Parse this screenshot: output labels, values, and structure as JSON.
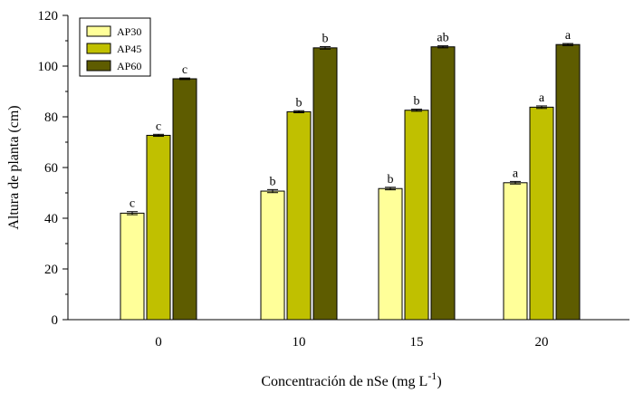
{
  "chart_data": {
    "type": "bar",
    "categories": [
      "0",
      "10",
      "15",
      "20"
    ],
    "series": [
      {
        "name": "AP30",
        "color": "#FFFF99",
        "values": [
          42,
          50.7,
          51.7,
          54
        ],
        "errors": [
          0.6,
          0.6,
          0.5,
          0.5
        ],
        "letters": [
          "c",
          "b",
          "b",
          "a"
        ]
      },
      {
        "name": "AP45",
        "color": "#C0C000",
        "values": [
          72.7,
          82,
          82.6,
          83.8
        ],
        "errors": [
          0.4,
          0.4,
          0.4,
          0.5
        ],
        "letters": [
          "c",
          "b",
          "b",
          "a"
        ]
      },
      {
        "name": "AP60",
        "color": "#5E5C00",
        "values": [
          95,
          107.2,
          107.6,
          108.5
        ],
        "errors": [
          0.3,
          0.5,
          0.4,
          0.4
        ],
        "letters": [
          "c",
          "b",
          "ab",
          "a"
        ]
      }
    ],
    "xlabel": "Concentración de nSe (mg L",
    "xlabel_sup": "-1",
    "xlabel_close": ")",
    "ylabel": "Altura de planta (cm)",
    "ylim": [
      0,
      120
    ],
    "yticks": [
      0,
      20,
      40,
      60,
      80,
      100,
      120
    ],
    "legend_position": "top-left",
    "grid": false
  }
}
